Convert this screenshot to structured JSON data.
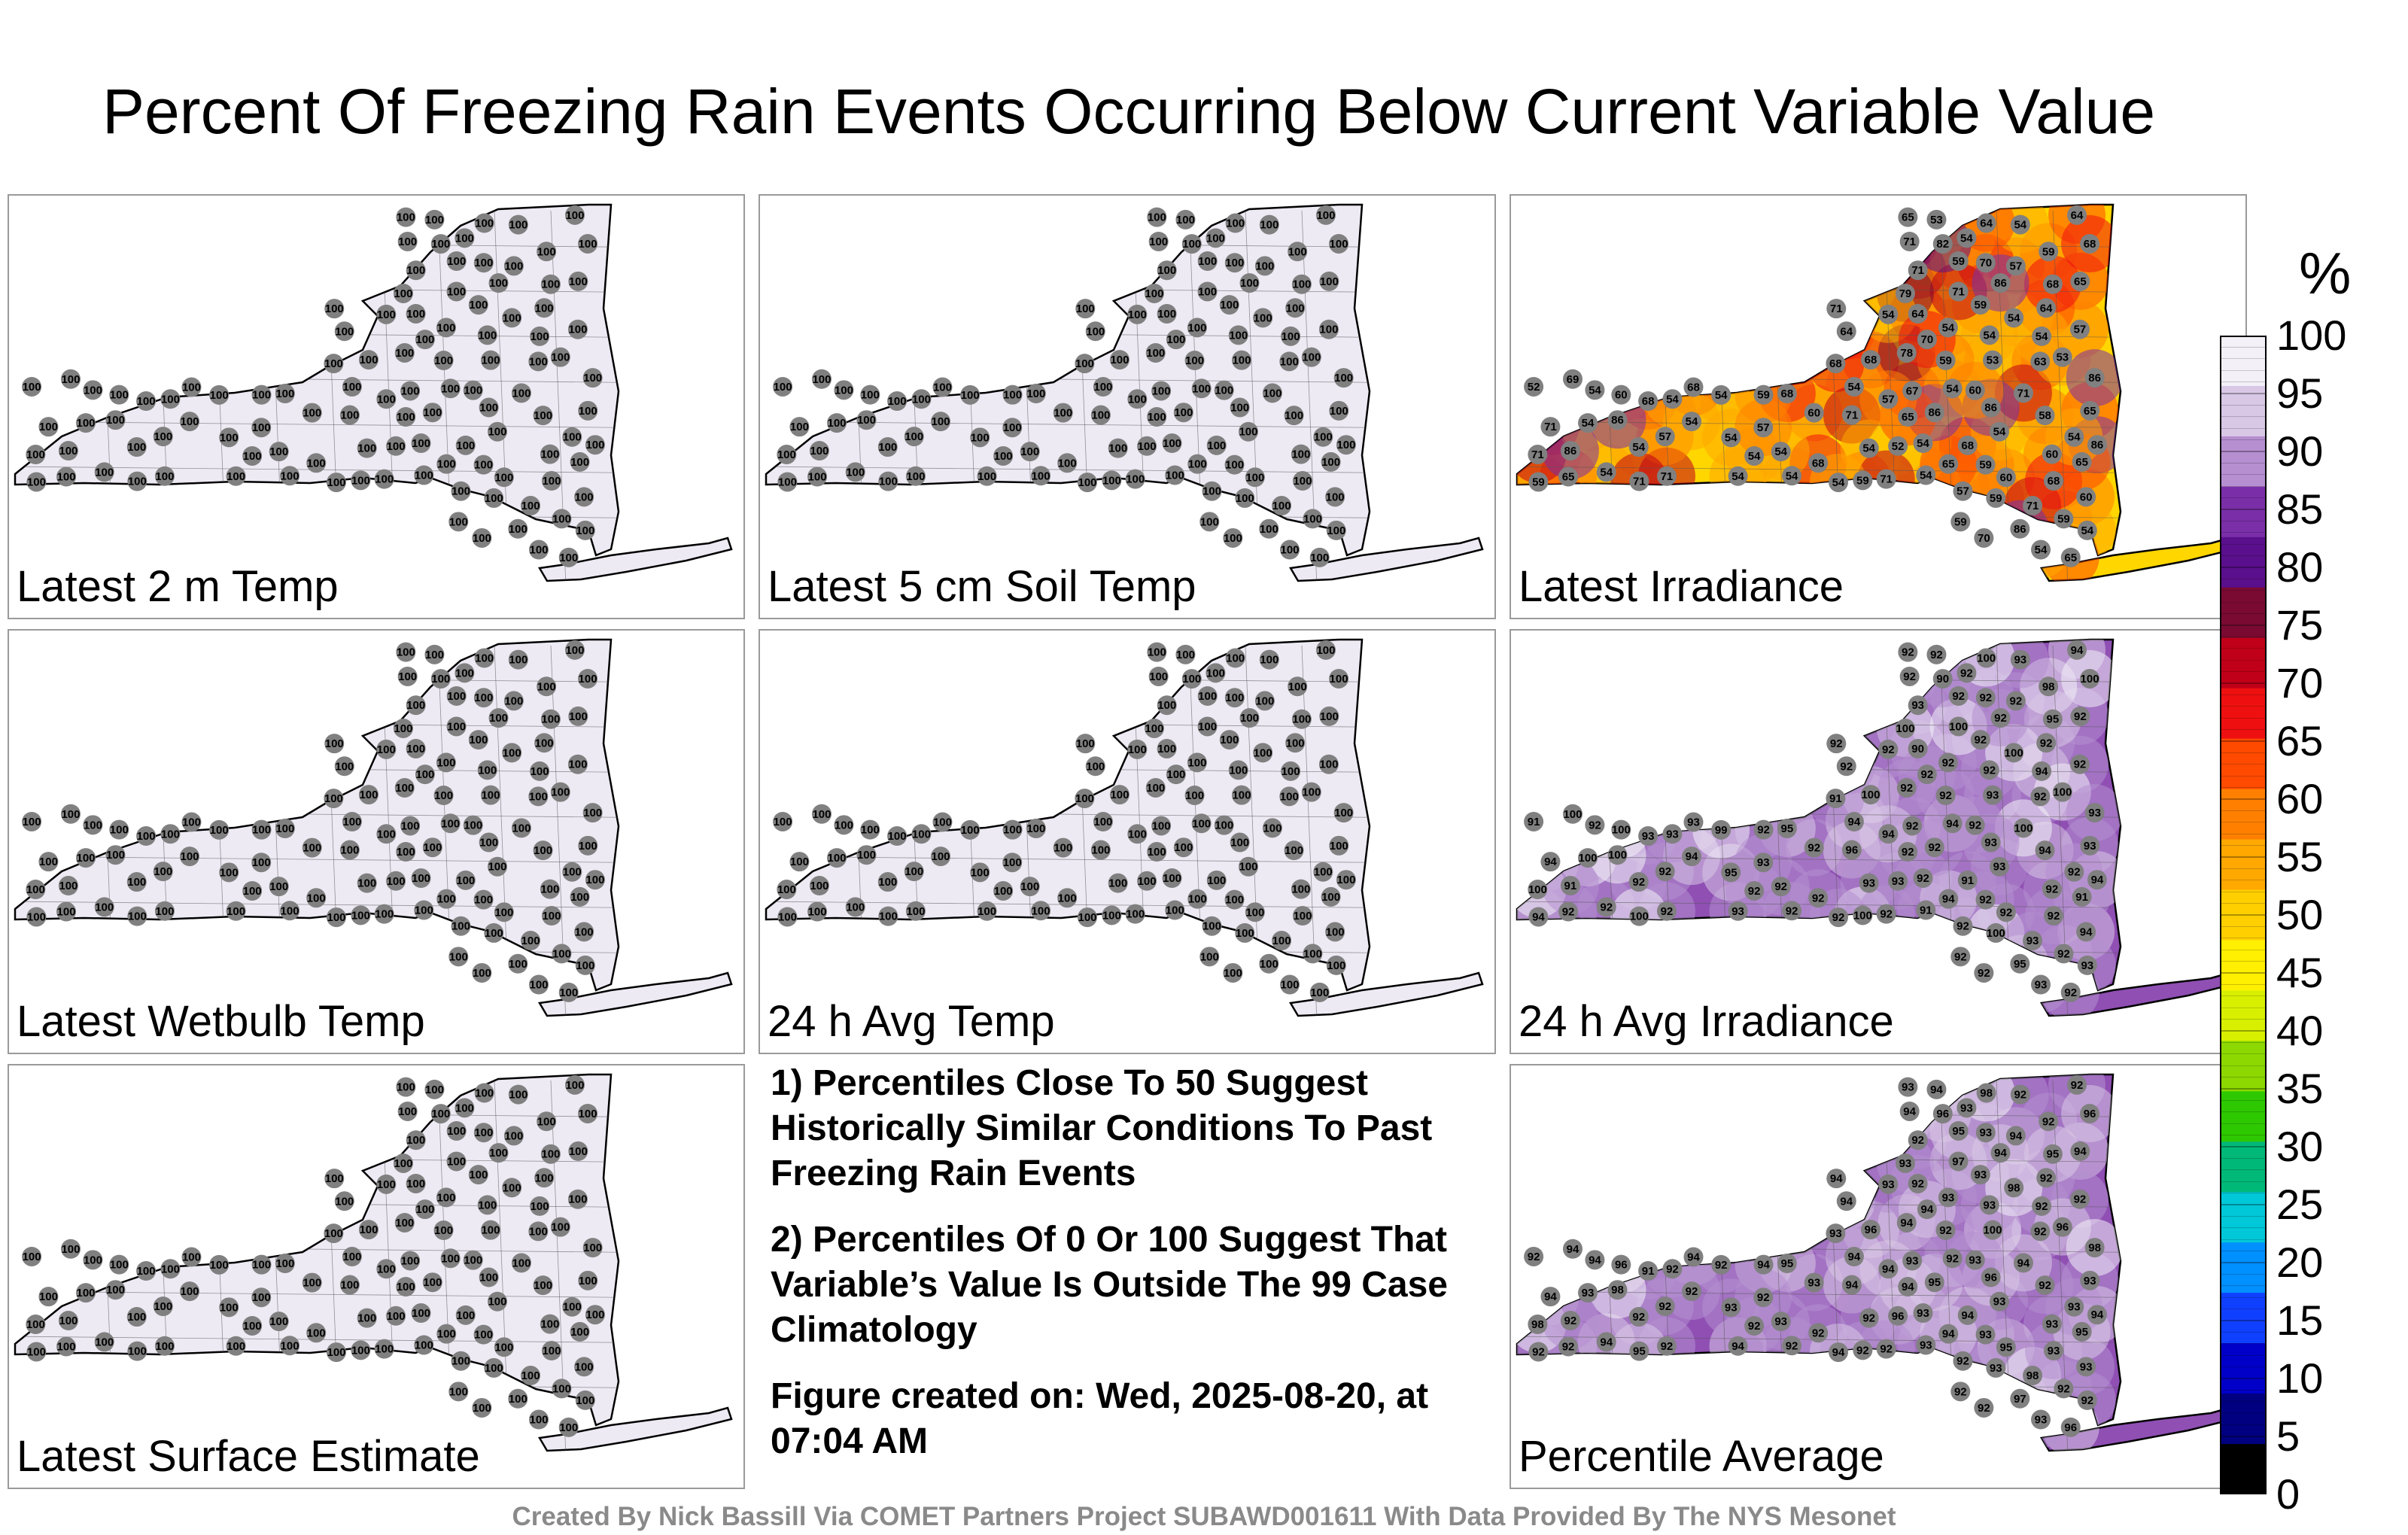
{
  "title": "Percent Of Freezing Rain Events Occurring Below Current Variable Value",
  "panels": [
    {
      "label": "Latest 2 m Temp",
      "fill": "#eeeaf4",
      "values": [
        100,
        100,
        100,
        100,
        100,
        100,
        100,
        100,
        100,
        100,
        100,
        100,
        100,
        100,
        100,
        100,
        100,
        100,
        100,
        100,
        100,
        100,
        100,
        100,
        100,
        100,
        100,
        100,
        100,
        100,
        100,
        100,
        100,
        100,
        100,
        100,
        100,
        100,
        100,
        100,
        100,
        100,
        100,
        100,
        100,
        100,
        100,
        100,
        100,
        100,
        100,
        100,
        100,
        100,
        100,
        100,
        100,
        100,
        100,
        100,
        100,
        100,
        100,
        100,
        100,
        100,
        100,
        100,
        100,
        100,
        100,
        100,
        100,
        100,
        100,
        100,
        100,
        100,
        100,
        100,
        100,
        100,
        100,
        100,
        100,
        100,
        100,
        100,
        100,
        100,
        100,
        100,
        100,
        100,
        100
      ]
    },
    {
      "label": "Latest 5 cm Soil Temp",
      "fill": "#eeeaf4",
      "values": [
        100,
        100,
        100,
        100,
        100,
        100,
        100,
        100,
        100,
        100,
        100,
        100,
        100,
        100,
        100,
        100,
        100,
        100,
        100,
        100,
        100,
        100,
        100,
        100,
        100,
        100,
        100,
        100,
        100,
        100,
        100,
        100,
        100,
        100,
        100,
        100,
        100,
        100,
        100,
        100,
        100,
        100,
        100,
        100,
        100,
        100,
        100,
        100,
        100,
        100,
        100,
        100,
        100,
        100,
        100,
        100,
        100,
        100,
        100,
        100,
        100,
        100,
        100,
        100,
        100,
        100,
        100,
        100,
        100,
        100,
        100,
        100,
        100,
        100,
        100,
        100,
        100,
        100,
        100,
        100,
        100,
        100,
        100,
        100,
        100,
        100,
        100,
        100,
        100,
        100,
        100,
        100,
        100,
        100,
        100
      ]
    },
    {
      "label": "Latest Irradiance",
      "fill": "#ffd600",
      "values": [
        60,
        68,
        68,
        71,
        71,
        54,
        65,
        65,
        64,
        64,
        68,
        54,
        57,
        59,
        59,
        54,
        64,
        57,
        68,
        70,
        59,
        54,
        71,
        68,
        67,
        60,
        63,
        68,
        70,
        65,
        78,
        57,
        68,
        54,
        71,
        58,
        59,
        65,
        59,
        54,
        54,
        54,
        57,
        54,
        53,
        59,
        54,
        71,
        60,
        54,
        54,
        54,
        54,
        52,
        54,
        54,
        59,
        54,
        54,
        54,
        60,
        54,
        59,
        65,
        53,
        54,
        54,
        64,
        54,
        54,
        52,
        59,
        65,
        59,
        68,
        71,
        71,
        54,
        53,
        64,
        71,
        86,
        60,
        71,
        86,
        69,
        71,
        86,
        68,
        68,
        79,
        86,
        86,
        86,
        71,
        65,
        82,
        86,
        86,
        71,
        54,
        54,
        54,
        65,
        59,
        54,
        57,
        70,
        57
      ]
    },
    {
      "label": "Latest Wetbulb Temp",
      "fill": "#eeeaf4",
      "values": [
        100,
        100,
        100,
        100,
        100,
        100,
        100,
        100,
        100,
        100,
        100,
        100,
        100,
        100,
        100,
        100,
        100,
        100,
        100,
        100,
        100,
        100,
        100,
        100,
        100,
        100,
        100,
        100,
        100,
        100,
        100,
        100,
        100,
        100,
        100,
        100,
        100,
        100,
        100,
        100,
        100,
        100,
        100,
        100,
        100,
        100,
        100,
        100,
        100,
        100,
        100,
        100,
        100,
        100,
        100,
        100,
        100,
        100,
        100,
        100,
        100,
        100,
        100,
        100,
        100,
        100,
        100,
        100,
        100,
        100,
        100,
        100,
        100,
        100,
        100,
        100,
        100,
        100,
        100,
        100,
        100,
        100,
        100,
        100,
        100,
        100,
        100,
        100,
        100,
        100,
        100,
        100,
        100,
        100,
        100
      ]
    },
    {
      "label": "24 h Avg Temp",
      "fill": "#eeeaf4",
      "values": [
        100,
        100,
        100,
        100,
        100,
        100,
        100,
        100,
        100,
        100,
        100,
        100,
        100,
        100,
        100,
        100,
        100,
        100,
        100,
        100,
        100,
        100,
        100,
        100,
        100,
        100,
        100,
        100,
        100,
        100,
        100,
        100,
        100,
        100,
        100,
        100,
        100,
        100,
        100,
        100,
        100,
        100,
        100,
        100,
        100,
        100,
        100,
        100,
        100,
        100,
        100,
        100,
        100,
        100,
        100,
        100,
        100,
        100,
        100,
        100,
        100,
        100,
        100,
        100,
        100,
        100,
        100,
        100,
        100,
        100,
        100,
        100,
        100,
        100,
        100,
        100,
        100,
        100,
        100,
        100,
        100,
        100,
        100,
        100,
        100,
        100,
        100,
        100,
        100,
        100,
        100,
        100,
        100,
        100,
        100
      ]
    },
    {
      "label": "24 h Avg Irradiance",
      "fill": "#8f4fb3",
      "values": [
        92,
        95,
        100,
        92,
        93,
        94,
        92,
        92,
        90,
        92,
        91,
        92,
        92,
        92,
        92,
        91,
        92,
        92,
        93,
        92,
        94,
        92,
        94,
        91,
        92,
        92,
        92,
        92,
        92,
        93,
        92,
        92,
        93,
        92,
        92,
        94,
        92,
        92,
        98,
        92,
        93,
        94,
        92,
        93,
        93,
        92,
        94,
        96,
        92,
        94,
        93,
        93,
        93,
        91,
        92,
        93,
        92,
        92,
        92,
        92,
        94,
        95,
        92,
        92,
        92,
        93,
        92,
        94,
        100,
        99,
        93,
        100,
        94,
        100,
        100,
        100,
        100,
        100,
        100,
        100,
        93,
        95,
        100,
        100,
        100,
        100,
        100,
        93
      ]
    },
    {
      "label": "Latest Surface Estimate",
      "fill": "#eeeaf4",
      "values": [
        100,
        100,
        100,
        100,
        100,
        100,
        100,
        100,
        100,
        100,
        100,
        100,
        100,
        100,
        100,
        100,
        100,
        100,
        100,
        100,
        100,
        100,
        100,
        100,
        100,
        100,
        100,
        100,
        100,
        100,
        100,
        100,
        100,
        100,
        100,
        100,
        100,
        100,
        100,
        100,
        100,
        100,
        100,
        100,
        100,
        100,
        100,
        100,
        100,
        100,
        100,
        100,
        100,
        100,
        100,
        100,
        100,
        100,
        100,
        100,
        100,
        100,
        100,
        100,
        100,
        100,
        100,
        100,
        100,
        100,
        100,
        100,
        100,
        100,
        100,
        100,
        100,
        100,
        100,
        100,
        100,
        100,
        100,
        100,
        100,
        100,
        100,
        100,
        100,
        100,
        100,
        100,
        100,
        100,
        100
      ]
    },
    {
      "label": "Percentile Average",
      "fill": "#8f4fb3",
      "values": [
        93,
        95,
        96,
        94,
        92,
        94,
        96,
        94,
        92,
        94,
        94,
        93,
        92,
        95,
        92,
        93,
        92,
        94,
        94,
        93,
        92,
        92,
        94,
        93,
        93,
        93,
        92,
        92,
        92,
        93,
        94,
        92,
        91,
        92,
        92,
        92,
        94,
        92,
        92,
        94,
        92,
        92,
        92,
        93,
        100,
        93,
        92,
        94,
        95,
        92,
        93,
        92,
        92,
        92,
        93,
        94,
        93,
        94,
        93,
        93,
        93,
        93,
        92,
        93,
        94,
        92,
        93,
        92,
        93,
        92,
        96,
        92,
        94,
        93,
        96,
        95,
        94,
        98,
        96,
        98,
        98,
        97,
        96,
        97,
        98,
        94,
        98,
        98,
        93,
        95
      ]
    }
  ],
  "notes": [
    "1) Percentiles Close To 50 Suggest Historically Similar Conditions To Past Freezing Rain Events",
    "2) Percentiles Of 0 Or 100 Suggest That Variable’s Value Is Outside The 99 Case Climatology",
    "Figure created on: Wed, 2025-08-20, at 07:04 AM"
  ],
  "credit": "Created By Nick Bassill Via COMET Partners Project SUBAWD001611 With Data Provided By The NYS Mesonet",
  "colorbar": {
    "unit": "%",
    "ticks": [
      "100",
      "95",
      "90",
      "85",
      "80",
      "75",
      "70",
      "65",
      "60",
      "55",
      "50",
      "45",
      "40",
      "35",
      "30",
      "25",
      "20",
      "15",
      "10",
      "5",
      "0"
    ],
    "colors": [
      "#f3f0f7",
      "#d8c8e6",
      "#b58fd0",
      "#7a2fa8",
      "#5a0f8c",
      "#7a0a32",
      "#c00018",
      "#ee1010",
      "#ff4a00",
      "#ff8000",
      "#ffa800",
      "#ffcf00",
      "#ffef00",
      "#d8f000",
      "#8cd800",
      "#2ec800",
      "#00b878",
      "#00c8d8",
      "#0090ff",
      "#1040ff",
      "#0000c8",
      "#000080",
      "#000000"
    ]
  }
}
